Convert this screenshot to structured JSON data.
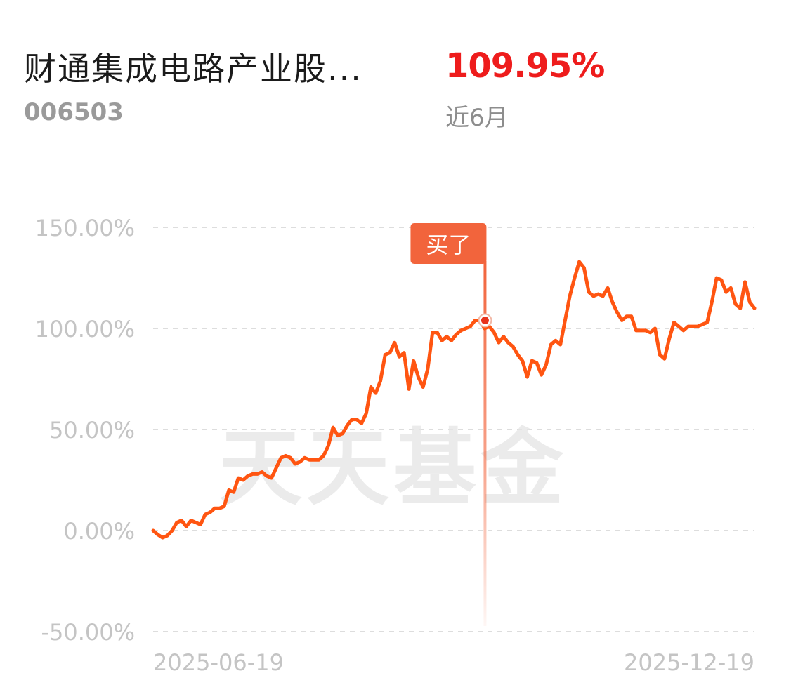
{
  "header": {
    "fund_name": "财通集成电路产业股...",
    "fund_code": "006503",
    "return_value": "109.95%",
    "period_label": "近6月"
  },
  "watermark": "天天基金",
  "colors": {
    "line": "#ff5511",
    "marker": "#f2643c",
    "grid": "#dddddd",
    "axis_text": "#c4c4c4",
    "return": "#ee1c1c"
  },
  "chart_data": {
    "type": "line",
    "ylim": [
      -50,
      150
    ],
    "yticks": [
      "150.00%",
      "100.00%",
      "50.00%",
      "0.00%",
      "-50.00%"
    ],
    "ytick_values": [
      150,
      100,
      50,
      0,
      -50
    ],
    "xticks": [
      "2025-06-19",
      "2025-12-19"
    ],
    "x_range": [
      "2025-06-19",
      "2025-12-19"
    ],
    "grid": true,
    "annotation": {
      "label": "买了",
      "date": "2025-09-28",
      "value": 104
    },
    "series": [
      {
        "values": [
          0,
          -2,
          -3.5,
          -2.5,
          0,
          4,
          5,
          2,
          5,
          4,
          3,
          8,
          9,
          11,
          11,
          12,
          20,
          19,
          26,
          25,
          27,
          28,
          28,
          29,
          27,
          26,
          31,
          36,
          37,
          36,
          33,
          34,
          36,
          35,
          35,
          35,
          37,
          42,
          51,
          47,
          48,
          52,
          55,
          55,
          53,
          58,
          71,
          68,
          74,
          87,
          88,
          93,
          86,
          88,
          70,
          84,
          76,
          71,
          80,
          98,
          98,
          94,
          96,
          94,
          97,
          99,
          100,
          101,
          104,
          104,
          100,
          101,
          98,
          93,
          96,
          93,
          91,
          87,
          84,
          76,
          84,
          83,
          77,
          82,
          92,
          94,
          92,
          104,
          116,
          125,
          133,
          130,
          118,
          116,
          117,
          116,
          120,
          113,
          108,
          104,
          106,
          106,
          99,
          99,
          99,
          98,
          100,
          87,
          85,
          95,
          103,
          101,
          99,
          101,
          101,
          101,
          102,
          103,
          113,
          125,
          124,
          118,
          120,
          112,
          110,
          123,
          113,
          110
        ]
      }
    ]
  }
}
